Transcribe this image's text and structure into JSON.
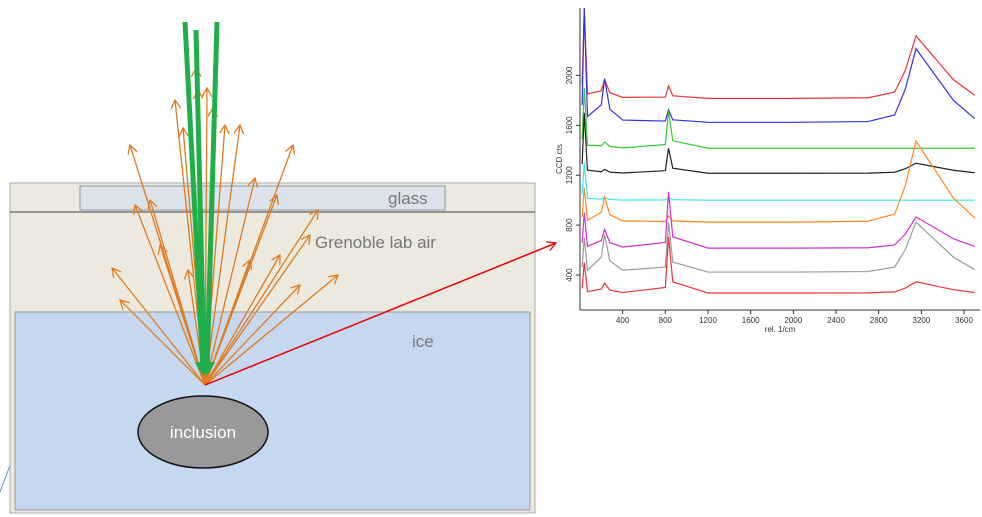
{
  "diagram": {
    "glass": "glass",
    "air": "Grenoble lab air",
    "ice": "ice",
    "inclusion": "inclusion"
  },
  "chart_data": {
    "type": "line",
    "ylabel": "CCD cts",
    "xlabel": "rel. 1/cm",
    "x": [
      20,
      40,
      70,
      200,
      230,
      280,
      400,
      800,
      830,
      870,
      1200,
      2000,
      2700,
      2950,
      3050,
      3150,
      3250,
      3350,
      3500,
      3700
    ],
    "xlim": [
      0,
      3750
    ],
    "ylim": [
      120,
      2540
    ],
    "xticks": [
      400,
      800,
      1200,
      1600,
      2000,
      2400,
      2800,
      3200,
      3600
    ],
    "yticks": [
      400,
      800,
      1200,
      1600,
      2000
    ],
    "series": [
      {
        "color": "#e8333a",
        "values": [
          1925,
          2540,
          1852,
          1876,
          1966,
          1861,
          1824,
          1826,
          1916,
          1836,
          1816,
          1816,
          1821,
          1866,
          2041,
          2316,
          2216,
          2116,
          1966,
          1841
        ]
      },
      {
        "color": "#3333dd",
        "values": [
          1761,
          2540,
          1670,
          1764,
          1974,
          1729,
          1642,
          1634,
          1724,
          1644,
          1624,
          1624,
          1630,
          1683,
          1890,
          2214,
          2096,
          1978,
          1801,
          1654
        ]
      },
      {
        "color": "#33cc33",
        "values": [
          1489,
          1900,
          1440,
          1436,
          1466,
          1431,
          1419,
          1446,
          1716,
          1476,
          1416,
          1416,
          1416,
          1416,
          1416,
          1416,
          1416,
          1416,
          1416,
          1416
        ]
      },
      {
        "color": "#222222",
        "values": [
          1289,
          1700,
          1240,
          1228,
          1246,
          1225,
          1218,
          1236,
          1416,
          1256,
          1216,
          1216,
          1217,
          1224,
          1252,
          1296,
          1280,
          1264,
          1240,
          1220
        ]
      },
      {
        "color": "#33e8e8",
        "values": [
          1045,
          1300,
          1015,
          1008,
          1020,
          1006,
          1001,
          1002,
          1020,
          1004,
          1000,
          1000,
          1000,
          1000,
          1000,
          1000,
          1000,
          1000,
          1000,
          1000
        ]
      },
      {
        "color": "#ff8822",
        "values": [
          865,
          1100,
          838,
          904,
          1024,
          884,
          834,
          829,
          874,
          834,
          824,
          824,
          831,
          889,
          1117,
          1474,
          1344,
          1214,
          1019,
          857
        ]
      },
      {
        "color": "#cc33cc",
        "values": [
          659,
          900,
          630,
          676,
          766,
          661,
          624,
          661,
          1066,
          706,
          616,
          616,
          619,
          641,
          729,
          866,
          816,
          766,
          691,
          629
        ]
      },
      {
        "color": "#999999",
        "values": [
          465,
          700,
          438,
          544,
          724,
          514,
          439,
          464,
          824,
          504,
          424,
          424,
          428,
          464,
          604,
          824,
          744,
          664,
          544,
          444
        ]
      },
      {
        "color": "#e8333a",
        "values": [
          293,
          500,
          268,
          288,
          336,
          280,
          260,
          301,
          706,
          346,
          256,
          256,
          257,
          265,
          296,
          346,
          328,
          310,
          283,
          260
        ]
      }
    ]
  }
}
